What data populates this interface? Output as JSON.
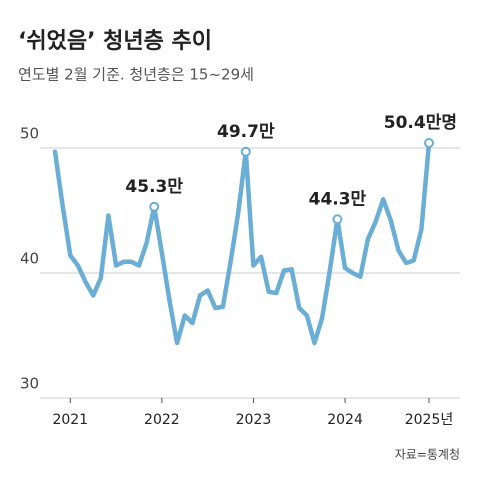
{
  "chart_data": {
    "type": "line",
    "title": "‘쉬었음’ 청년층 추이",
    "subtitle": "연도별 2월 기준. 청년층은 15~29세",
    "source": "자료=통계청",
    "categories": [
      null,
      null,
      "2021",
      null,
      null,
      null,
      null,
      null,
      null,
      null,
      null,
      null,
      null,
      null,
      "2022",
      null,
      null,
      null,
      null,
      null,
      null,
      null,
      null,
      null,
      null,
      null,
      "2023",
      null,
      null,
      null,
      null,
      null,
      null,
      null,
      null,
      null,
      null,
      null,
      "2024",
      null,
      null,
      null,
      null,
      null,
      null,
      null,
      null,
      null,
      null,
      "2025년"
    ],
    "series": [
      {
        "name": "‘쉬었음’ 청년층",
        "color": "#6aaed6",
        "values": [
          49.7,
          45.4,
          41.4,
          40.6,
          39.3,
          38.2,
          39.6,
          44.6,
          40.6,
          40.9,
          40.9,
          40.6,
          42.4,
          45.3,
          41.6,
          37.8,
          34.4,
          36.6,
          36.0,
          38.2,
          38.6,
          37.2,
          37.3,
          40.9,
          44.8,
          49.7,
          40.6,
          41.3,
          38.5,
          38.4,
          40.2,
          40.3,
          37.2,
          36.6,
          34.4,
          36.4,
          40.2,
          44.3,
          40.4,
          40.0,
          39.7,
          42.7,
          44.1,
          45.9,
          44.2,
          41.8,
          40.8,
          41.0,
          43.5,
          50.4
        ],
        "value_labels": [
          null,
          null,
          null,
          null,
          null,
          null,
          null,
          null,
          null,
          null,
          null,
          null,
          null,
          "45.3만",
          null,
          null,
          null,
          null,
          null,
          null,
          null,
          null,
          null,
          null,
          null,
          "49.7만",
          null,
          null,
          null,
          null,
          null,
          null,
          null,
          null,
          null,
          null,
          null,
          "44.3만",
          null,
          null,
          null,
          null,
          null,
          null,
          null,
          null,
          null,
          null,
          null,
          "50.4만명"
        ]
      }
    ],
    "ylim": [
      30,
      54
    ],
    "yticks": [
      30,
      40,
      50
    ],
    "grid": true
  }
}
